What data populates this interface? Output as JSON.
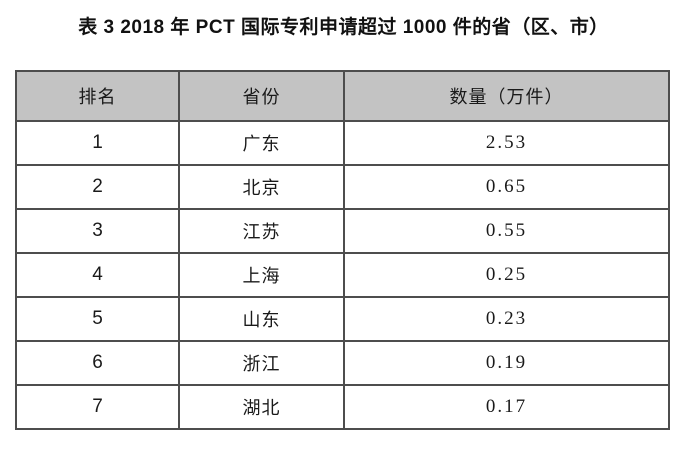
{
  "title": "表 3 2018 年 PCT 国际专利申请超过 1000 件的省（区、市）",
  "colors": {
    "background": "#ffffff",
    "header_bg": "#c3c3c3",
    "border": "#4d4d4d",
    "text": "#1a1a1a"
  },
  "table": {
    "columns": [
      {
        "label": "排名"
      },
      {
        "label": "省份"
      },
      {
        "label": "数量（万件）"
      }
    ],
    "rows": [
      {
        "rank": "1",
        "province": "广东",
        "quantity": "2.53"
      },
      {
        "rank": "2",
        "province": "北京",
        "quantity": "0.65"
      },
      {
        "rank": "3",
        "province": "江苏",
        "quantity": "0.55"
      },
      {
        "rank": "4",
        "province": "上海",
        "quantity": "0.25"
      },
      {
        "rank": "5",
        "province": "山东",
        "quantity": "0.23"
      },
      {
        "rank": "6",
        "province": "浙江",
        "quantity": "0.19"
      },
      {
        "rank": "7",
        "province": "湖北",
        "quantity": "0.17"
      }
    ]
  }
}
